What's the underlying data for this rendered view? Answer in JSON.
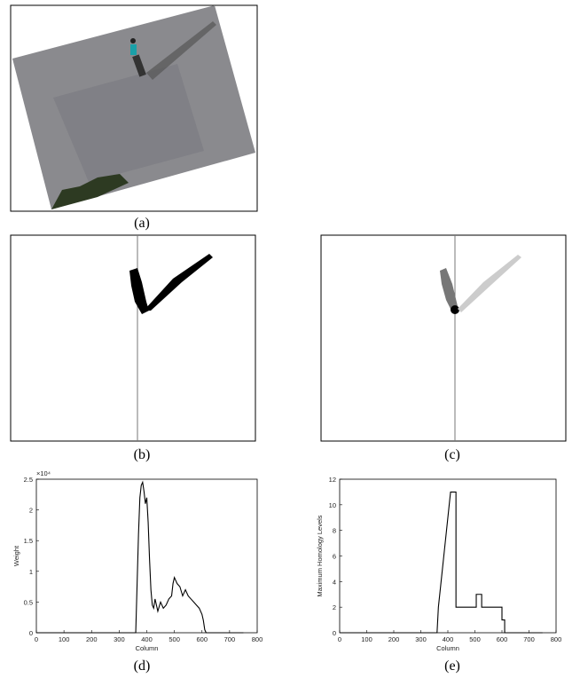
{
  "captions": [
    "(a)",
    "(b)",
    "(c)"
  ],
  "chart_data": [
    {
      "type": "line",
      "caption": "(d)",
      "xlabel": "Column",
      "ylabel": "Weight",
      "y_multiplier": "×10⁴",
      "color": "#000000",
      "x": [
        0,
        360,
        365,
        370,
        375,
        380,
        385,
        390,
        395,
        400,
        405,
        410,
        415,
        420,
        425,
        430,
        440,
        450,
        460,
        470,
        480,
        490,
        495,
        500,
        505,
        510,
        520,
        530,
        540,
        550,
        560,
        570,
        580,
        590,
        600,
        605,
        610,
        615,
        750
      ],
      "values": [
        0,
        0,
        0.8,
        1.6,
        2.2,
        2.4,
        2.45,
        2.3,
        2.1,
        2.2,
        1.8,
        1.2,
        0.7,
        0.45,
        0.4,
        0.55,
        0.35,
        0.5,
        0.4,
        0.45,
        0.55,
        0.6,
        0.8,
        0.9,
        0.85,
        0.8,
        0.75,
        0.6,
        0.7,
        0.6,
        0.55,
        0.5,
        0.45,
        0.4,
        0.3,
        0.2,
        0.05,
        0,
        0
      ],
      "xlim": [
        0,
        800
      ],
      "xticks": [
        0,
        100,
        200,
        300,
        400,
        500,
        600,
        700,
        800
      ],
      "ylim": [
        0,
        2.5
      ],
      "yticks": [
        0,
        0.5,
        1,
        1.5,
        2,
        2.5
      ]
    },
    {
      "type": "line",
      "caption": "(e)",
      "xlabel": "Column",
      "ylabel": "Maximum Homology Levels",
      "color": "#000000",
      "x": [
        0,
        360,
        365,
        375,
        385,
        395,
        405,
        410,
        430,
        430,
        505,
        505,
        525,
        525,
        600,
        600,
        610,
        610,
        750
      ],
      "values": [
        0,
        0,
        2,
        4,
        6,
        8,
        10,
        11,
        11,
        2,
        2,
        3,
        3,
        2,
        2,
        1,
        1,
        0,
        0
      ],
      "xlim": [
        0,
        800
      ],
      "xticks": [
        0,
        100,
        200,
        300,
        400,
        500,
        600,
        700,
        800
      ],
      "ylim": [
        0,
        12
      ],
      "yticks": [
        0,
        2,
        4,
        6,
        8,
        10,
        12
      ]
    }
  ]
}
